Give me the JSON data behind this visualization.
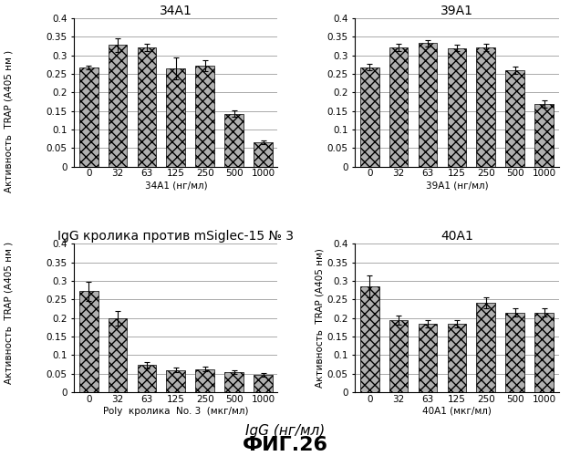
{
  "subplots": [
    {
      "title": "34A1",
      "xlabel": "34A1 (нг/мл)",
      "xtick_labels": [
        "0",
        "32",
        "63",
        "125",
        "250",
        "500",
        "1000"
      ],
      "values": [
        0.268,
        0.328,
        0.322,
        0.265,
        0.273,
        0.143,
        0.065
      ],
      "errors": [
        0.005,
        0.018,
        0.01,
        0.03,
        0.015,
        0.008,
        0.005
      ],
      "ylim": [
        0,
        0.4
      ],
      "ytick_vals": [
        0,
        0.05,
        0.1,
        0.15,
        0.2,
        0.25,
        0.3,
        0.35,
        0.4
      ],
      "ytick_labels": [
        "0",
        "0.05",
        "0.1",
        "0.15",
        "0.2",
        "0.25",
        "0.3",
        "0.35",
        "0.4"
      ]
    },
    {
      "title": "39A1",
      "xlabel": "39A1 (нг/мл)",
      "xtick_labels": [
        "0",
        "32",
        "63",
        "125",
        "250",
        "500",
        "1000"
      ],
      "values": [
        0.268,
        0.322,
        0.333,
        0.32,
        0.322,
        0.26,
        0.168
      ],
      "errors": [
        0.008,
        0.01,
        0.008,
        0.008,
        0.01,
        0.01,
        0.01
      ],
      "ylim": [
        0,
        0.4
      ],
      "ytick_vals": [
        0,
        0.05,
        0.1,
        0.15,
        0.2,
        0.25,
        0.3,
        0.35,
        0.4
      ],
      "ytick_labels": [
        "0",
        "0.05",
        "0.1",
        "0.15",
        "0.2",
        "0.25",
        "0.3",
        "0.35",
        "0.4"
      ]
    },
    {
      "title": "IgG кролика против mSiglec-15 № 3",
      "xlabel": "Poly  кролика  No. 3  (мкг/мл)",
      "xtick_labels": [
        "0",
        "32",
        "63",
        "125",
        "250",
        "500",
        "1000"
      ],
      "values": [
        0.272,
        0.2,
        0.073,
        0.06,
        0.062,
        0.055,
        0.047
      ],
      "errors": [
        0.025,
        0.02,
        0.008,
        0.006,
        0.006,
        0.005,
        0.005
      ],
      "ylim": [
        0,
        0.4
      ],
      "ytick_vals": [
        0,
        0.05,
        0.1,
        0.15,
        0.2,
        0.25,
        0.3,
        0.35,
        0.4
      ],
      "ytick_labels": [
        "0",
        "0.05",
        "0.1",
        "0.15",
        "0.2",
        "0.25",
        "0.3",
        "0.35",
        "0.4"
      ]
    },
    {
      "title": "40A1",
      "xlabel": "40A1 (мкг/мл)",
      "xtick_labels": [
        "0",
        "32",
        "63",
        "125",
        "250",
        "500",
        "1000"
      ],
      "values": [
        0.285,
        0.195,
        0.185,
        0.185,
        0.24,
        0.215,
        0.215
      ],
      "errors": [
        0.03,
        0.012,
        0.01,
        0.01,
        0.015,
        0.01,
        0.01
      ],
      "ylim": [
        0,
        0.4
      ],
      "ytick_vals": [
        0,
        0.05,
        0.1,
        0.15,
        0.2,
        0.25,
        0.3,
        0.35,
        0.4
      ],
      "ytick_labels": [
        "0",
        "0.05",
        "0.1",
        "0.15",
        "0.2",
        "0.25",
        "0.3",
        "0.35",
        "0.4"
      ]
    }
  ],
  "ylabel": "Активность  TRAP (А405 нм )",
  "ylabel_bottom_right": "Активность  TRAP (А405 нм)",
  "bottom_xlabel": "IgG (нг/мл)",
  "figure_label": "ФИГ.26",
  "bar_color": "#b0b0b0",
  "bar_hatch": "xxx",
  "background_color": "#ffffff",
  "title_fontsize": 10,
  "label_fontsize": 7.5,
  "tick_fontsize": 7.5
}
